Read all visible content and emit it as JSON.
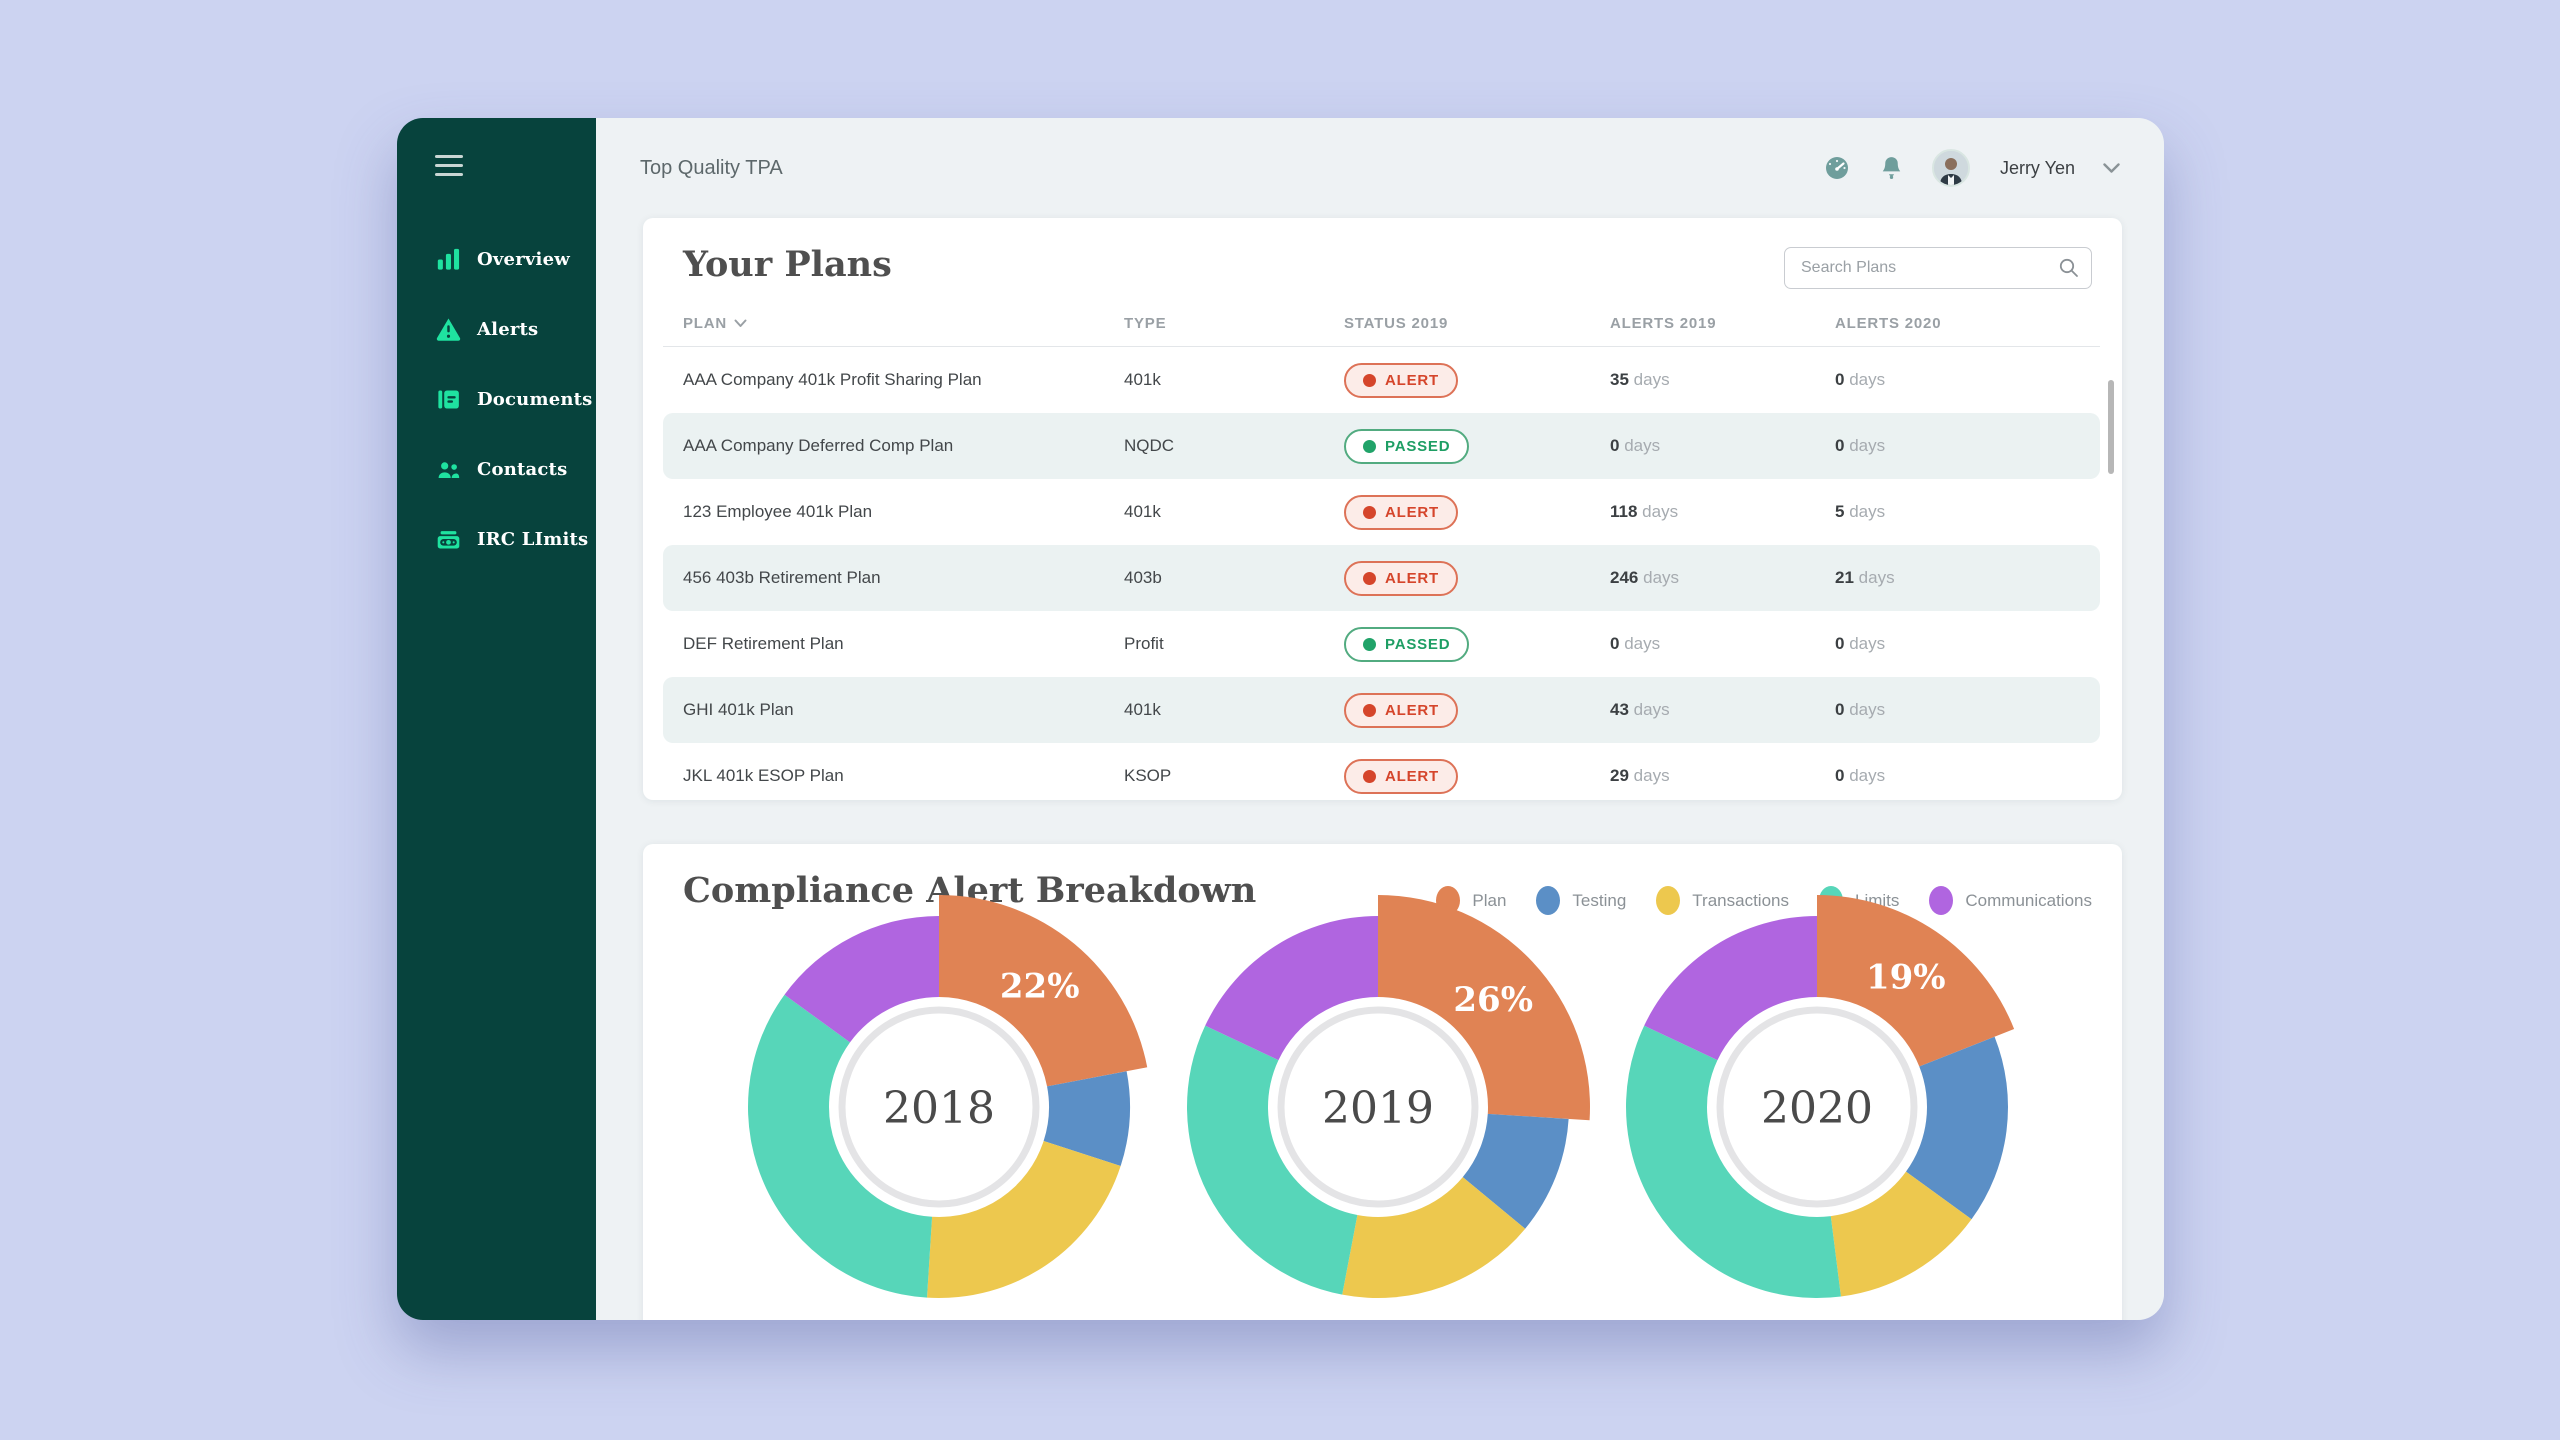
{
  "page": {
    "background": "#ccd3f1",
    "sidebar_color": "#07433d",
    "accent_green": "#1fe2a0"
  },
  "sidebar": {
    "items": [
      {
        "label": "Overview",
        "icon": "bar-chart-icon"
      },
      {
        "label": "Alerts",
        "icon": "warning-icon"
      },
      {
        "label": "Documents",
        "icon": "document-icon"
      },
      {
        "label": "Contacts",
        "icon": "contacts-icon"
      },
      {
        "label": "IRC LImits",
        "icon": "money-icon"
      }
    ]
  },
  "topbar": {
    "brand": "Top Quality TPA",
    "user_name": "Jerry Yen",
    "icons": [
      "speedometer-icon",
      "bell-icon",
      "avatar",
      "chevron-down-icon"
    ]
  },
  "plans": {
    "title": "Your Plans",
    "search_placeholder": "Search Plans",
    "columns": [
      "PLAN",
      "TYPE",
      "STATUS 2019",
      "ALERTS 2019",
      "ALERTS 2020"
    ],
    "unit": "days",
    "rows": [
      {
        "plan": "AAA Company 401k Profit Sharing Plan",
        "type": "401k",
        "status": "ALERT",
        "alerts_2019": "35",
        "alerts_2020": "0"
      },
      {
        "plan": "AAA Company Deferred Comp Plan",
        "type": "NQDC",
        "status": "PASSED",
        "alerts_2019": "0",
        "alerts_2020": "0"
      },
      {
        "plan": "123 Employee 401k Plan",
        "type": "401k",
        "status": "ALERT",
        "alerts_2019": "118",
        "alerts_2020": "5"
      },
      {
        "plan": "456 403b Retirement Plan",
        "type": "403b",
        "status": "ALERT",
        "alerts_2019": "246",
        "alerts_2020": "21"
      },
      {
        "plan": "DEF Retirement Plan",
        "type": "Profit",
        "status": "PASSED",
        "alerts_2019": "0",
        "alerts_2020": "0"
      },
      {
        "plan": "GHI 401k Plan",
        "type": "401k",
        "status": "ALERT",
        "alerts_2019": "43",
        "alerts_2020": "0"
      },
      {
        "plan": "JKL 401k ESOP Plan",
        "type": "KSOP",
        "status": "ALERT",
        "alerts_2019": "29",
        "alerts_2020": "0"
      }
    ],
    "status_colors": {
      "alert": "#d5452b",
      "passed": "#21a369"
    }
  },
  "compliance": {
    "title": "Compliance Alert Breakdown"
  },
  "chart_data": {
    "type": "pie",
    "variant": "donut-exploded-first-slice",
    "title": "Compliance Alert Breakdown",
    "legend_position": "top-right",
    "categories": [
      "Plan",
      "Testing",
      "Transactions",
      "Limits",
      "Communications"
    ],
    "colors": [
      "#e08354",
      "#5b8fc6",
      "#edc84e",
      "#57d6b9",
      "#b065e0"
    ],
    "charts": [
      {
        "label": "2018",
        "highlight": "22%",
        "values": [
          22,
          8,
          21,
          34,
          15
        ]
      },
      {
        "label": "2019",
        "highlight": "26%",
        "values": [
          26,
          10,
          17,
          29,
          18
        ]
      },
      {
        "label": "2020",
        "highlight": "19%",
        "values": [
          19,
          16,
          13,
          34,
          18
        ]
      }
    ]
  }
}
